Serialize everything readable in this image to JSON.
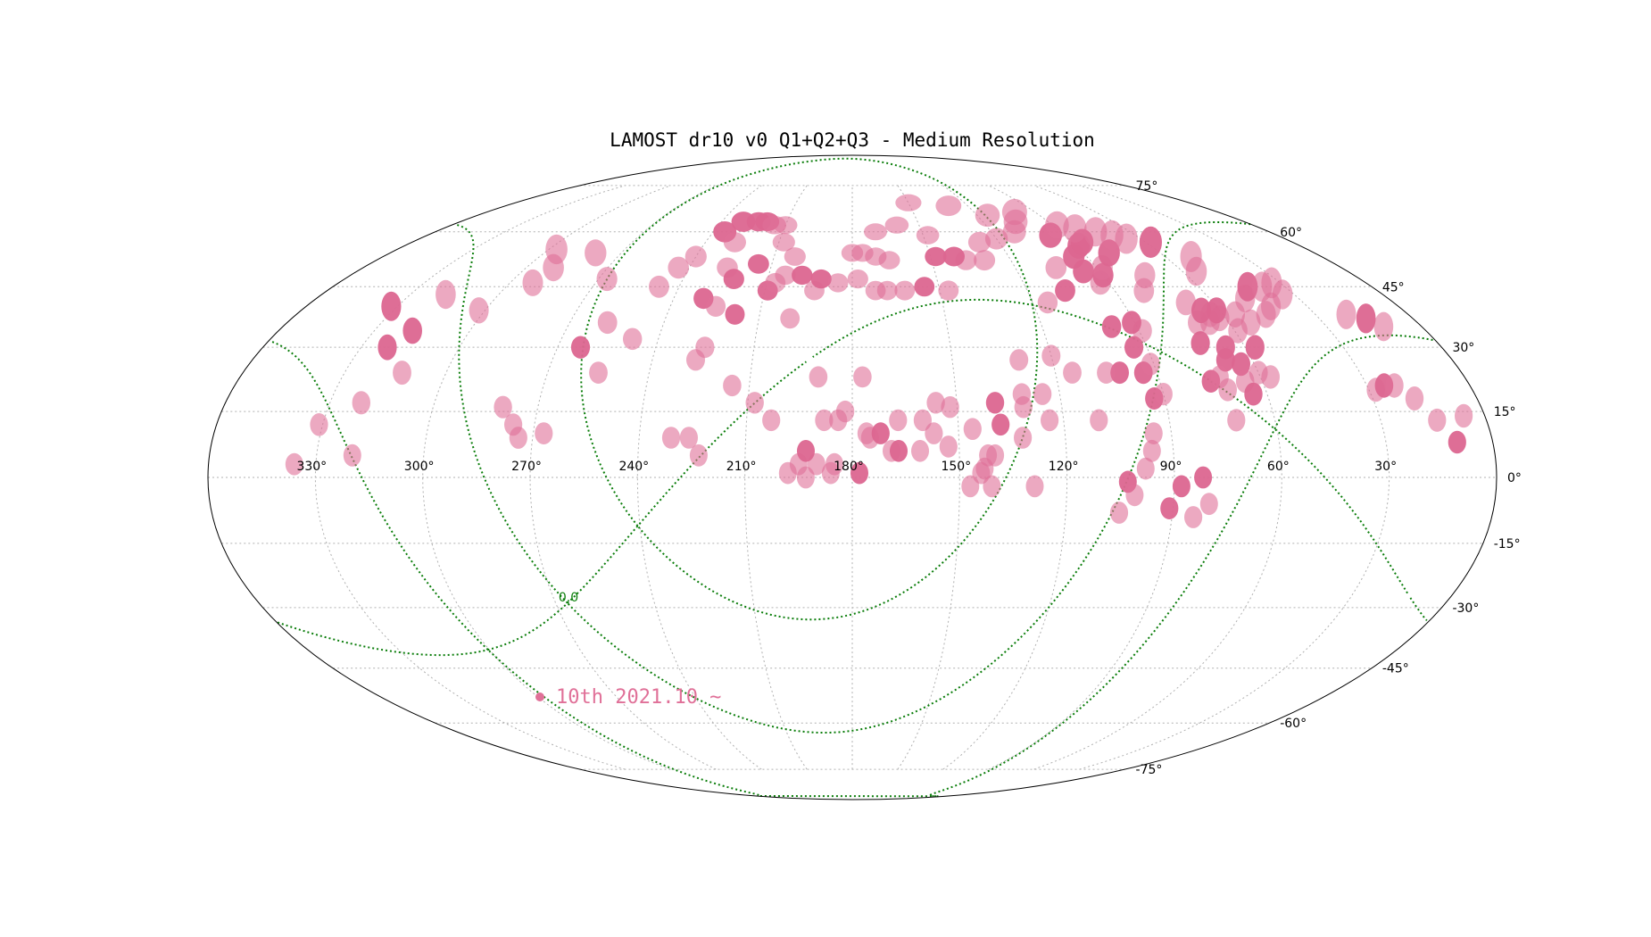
{
  "chart_data": {
    "type": "scatter",
    "projection": "mollweide",
    "title": "LAMOST dr10 v0 Q1+Q2+Q3 - Medium Resolution",
    "lon_ticks": [
      "330°",
      "300°",
      "270°",
      "240°",
      "210°",
      "180°",
      "150°",
      "120°",
      "90°",
      "60°",
      "30°"
    ],
    "lon_tick_values": [
      330,
      300,
      270,
      240,
      210,
      180,
      150,
      120,
      90,
      60,
      30
    ],
    "lat_ticks": [
      "75°",
      "60°",
      "45°",
      "30°",
      "15°",
      "0°",
      "-15°",
      "-30°",
      "-45°",
      "-60°",
      "-75°"
    ],
    "lat_tick_values": [
      75,
      60,
      45,
      30,
      15,
      0,
      -15,
      -30,
      -45,
      -60,
      -75
    ],
    "grid": true,
    "galactic_plane_label": "0.0",
    "legend": {
      "label": "10th 2021.10 ~",
      "color": "#e07098",
      "placement": "bottom-left"
    },
    "colors": {
      "field": "#e07098",
      "field_dark": "#dc6690",
      "galactic": "#0a7d0a",
      "grid": "#b0b0b0"
    },
    "fields": [
      {
        "ra": 336,
        "dec": 3,
        "dark": false
      },
      {
        "ra": 320,
        "dec": 5,
        "dark": false
      },
      {
        "ra": 331,
        "dec": 12,
        "dark": false
      },
      {
        "ra": 321,
        "dec": 17,
        "dark": false
      },
      {
        "ra": 313,
        "dec": 24,
        "dark": false
      },
      {
        "ra": 322,
        "dec": 30,
        "dark": true
      },
      {
        "ra": 318,
        "dec": 34,
        "dark": true
      },
      {
        "ra": 332,
        "dec": 40,
        "dark": true
      },
      {
        "ra": 302,
        "dec": 39,
        "dark": false
      },
      {
        "ra": 318,
        "dec": 43,
        "dark": false
      },
      {
        "ra": 292,
        "dec": 46,
        "dark": false
      },
      {
        "ra": 290,
        "dec": 50,
        "dark": false
      },
      {
        "ra": 297,
        "dec": 55,
        "dark": false
      },
      {
        "ra": 280,
        "dec": 54,
        "dark": false
      },
      {
        "ra": 267,
        "dec": 47,
        "dark": false
      },
      {
        "ra": 258,
        "dec": 36,
        "dark": false
      },
      {
        "ra": 263,
        "dec": 30,
        "dark": true
      },
      {
        "ra": 255,
        "dec": 24,
        "dark": false
      },
      {
        "ra": 248,
        "dec": 32,
        "dark": false
      },
      {
        "ra": 280,
        "dec": 16,
        "dark": false
      },
      {
        "ra": 276,
        "dec": 12,
        "dark": false
      },
      {
        "ra": 274,
        "dec": 9,
        "dark": false
      },
      {
        "ra": 267,
        "dec": 10,
        "dark": false
      },
      {
        "ra": 247,
        "dec": 45,
        "dark": false
      },
      {
        "ra": 244,
        "dec": 50,
        "dark": false
      },
      {
        "ra": 240,
        "dec": 53,
        "dark": false
      },
      {
        "ra": 235,
        "dec": 60,
        "dark": true
      },
      {
        "ra": 230,
        "dec": 63,
        "dark": true
      },
      {
        "ra": 223,
        "dec": 63,
        "dark": true
      },
      {
        "ra": 219,
        "dec": 63,
        "dark": true
      },
      {
        "ra": 215,
        "dec": 62,
        "dark": false
      },
      {
        "ra": 228,
        "dec": 57,
        "dark": false
      },
      {
        "ra": 226,
        "dec": 50,
        "dark": false
      },
      {
        "ra": 222,
        "dec": 47,
        "dark": true
      },
      {
        "ra": 215,
        "dec": 51,
        "dark": true
      },
      {
        "ra": 230,
        "dec": 42,
        "dark": true
      },
      {
        "ra": 225,
        "dec": 40,
        "dark": false
      },
      {
        "ra": 218,
        "dec": 38,
        "dark": true
      },
      {
        "ra": 225,
        "dec": 30,
        "dark": false
      },
      {
        "ra": 227,
        "dec": 27,
        "dark": false
      },
      {
        "ra": 215,
        "dec": 21,
        "dark": false
      },
      {
        "ra": 208,
        "dec": 17,
        "dark": false
      },
      {
        "ra": 203,
        "dec": 13,
        "dark": false
      },
      {
        "ra": 226,
        "dec": 9,
        "dark": false
      },
      {
        "ra": 231,
        "dec": 9,
        "dark": false
      },
      {
        "ra": 223,
        "dec": 5,
        "dark": false
      },
      {
        "ra": 209,
        "dec": 44,
        "dark": true
      },
      {
        "ra": 207,
        "dec": 46,
        "dark": false
      },
      {
        "ra": 204,
        "dec": 48,
        "dark": false
      },
      {
        "ra": 202,
        "dec": 53,
        "dark": false
      },
      {
        "ra": 208,
        "dec": 57,
        "dark": false
      },
      {
        "ra": 210,
        "dec": 62,
        "dark": false
      },
      {
        "ra": 198,
        "dec": 48,
        "dark": true
      },
      {
        "ra": 193,
        "dec": 44,
        "dark": false
      },
      {
        "ra": 191,
        "dec": 47,
        "dark": true
      },
      {
        "ra": 185,
        "dec": 46,
        "dark": false
      },
      {
        "ra": 178,
        "dec": 47,
        "dark": false
      },
      {
        "ra": 172,
        "dec": 44,
        "dark": false
      },
      {
        "ra": 168,
        "dec": 44,
        "dark": false
      },
      {
        "ra": 162,
        "dec": 44,
        "dark": false
      },
      {
        "ra": 155,
        "dec": 45,
        "dark": true
      },
      {
        "ra": 147,
        "dec": 44,
        "dark": false
      },
      {
        "ra": 200,
        "dec": 37,
        "dark": false
      },
      {
        "ra": 190,
        "dec": 23,
        "dark": false
      },
      {
        "ra": 177,
        "dec": 23,
        "dark": false
      },
      {
        "ra": 182,
        "dec": 15,
        "dark": false
      },
      {
        "ra": 184,
        "dec": 13,
        "dark": false
      },
      {
        "ra": 188,
        "dec": 13,
        "dark": false
      },
      {
        "ra": 176,
        "dec": 10,
        "dark": false
      },
      {
        "ra": 175,
        "dec": 9,
        "dark": false
      },
      {
        "ra": 172,
        "dec": 10,
        "dark": true
      },
      {
        "ra": 167,
        "dec": 13,
        "dark": false
      },
      {
        "ra": 169,
        "dec": 6,
        "dark": false
      },
      {
        "ra": 167,
        "dec": 6,
        "dark": true
      },
      {
        "ra": 160,
        "dec": 13,
        "dark": false
      },
      {
        "ra": 161,
        "dec": 6,
        "dark": false
      },
      {
        "ra": 157,
        "dec": 10,
        "dark": false
      },
      {
        "ra": 153,
        "dec": 7,
        "dark": false
      },
      {
        "ra": 156,
        "dec": 17,
        "dark": false
      },
      {
        "ra": 152,
        "dec": 16,
        "dark": false
      },
      {
        "ra": 146,
        "dec": 11,
        "dark": false
      },
      {
        "ra": 142,
        "dec": 5,
        "dark": false
      },
      {
        "ra": 143,
        "dec": 2,
        "dark": false
      },
      {
        "ra": 140,
        "dec": 5,
        "dark": false
      },
      {
        "ra": 139,
        "dec": 17,
        "dark": true
      },
      {
        "ra": 138,
        "dec": 12,
        "dark": true
      },
      {
        "ra": 131,
        "dec": 19,
        "dark": false
      },
      {
        "ra": 131,
        "dec": 16,
        "dark": false
      },
      {
        "ra": 132,
        "dec": 9,
        "dark": false
      },
      {
        "ra": 124,
        "dec": 13,
        "dark": false
      },
      {
        "ra": 125,
        "dec": 19,
        "dark": false
      },
      {
        "ra": 110,
        "dec": 13,
        "dark": false
      },
      {
        "ra": 130,
        "dec": 27,
        "dark": false
      },
      {
        "ra": 120,
        "dec": 28,
        "dark": false
      },
      {
        "ra": 115,
        "dec": 24,
        "dark": false
      },
      {
        "ra": 178,
        "dec": 1,
        "dark": true
      },
      {
        "ra": 185,
        "dec": 3,
        "dark": false
      },
      {
        "ra": 190,
        "dec": 3,
        "dark": false
      },
      {
        "ra": 195,
        "dec": 3,
        "dark": false
      },
      {
        "ra": 198,
        "dec": 1,
        "dark": false
      },
      {
        "ra": 193,
        "dec": 0,
        "dark": false
      },
      {
        "ra": 186,
        "dec": 1,
        "dark": false
      },
      {
        "ra": 193,
        "dec": 6,
        "dark": true
      },
      {
        "ra": 147,
        "dec": -2,
        "dark": false
      },
      {
        "ra": 141,
        "dec": -2,
        "dark": false
      },
      {
        "ra": 129,
        "dec": -2,
        "dark": false
      },
      {
        "ra": 144,
        "dec": 1,
        "dark": false
      },
      {
        "ra": 103,
        "dec": -1,
        "dark": true
      },
      {
        "ra": 101,
        "dec": -4,
        "dark": false
      },
      {
        "ra": 98,
        "dec": 2,
        "dark": false
      },
      {
        "ra": 96,
        "dec": 6,
        "dark": false
      },
      {
        "ra": 95,
        "dec": 10,
        "dark": false
      },
      {
        "ra": 88,
        "dec": -2,
        "dark": true
      },
      {
        "ra": 82,
        "dec": 0,
        "dark": true
      },
      {
        "ra": 80,
        "dec": -6,
        "dark": false
      },
      {
        "ra": 84,
        "dec": -9,
        "dark": false
      },
      {
        "ra": 91,
        "dec": -7,
        "dark": true
      },
      {
        "ra": 105,
        "dec": -8,
        "dark": false
      },
      {
        "ra": 71,
        "dec": 13,
        "dark": false
      },
      {
        "ra": 101,
        "dec": 24,
        "dark": true
      },
      {
        "ra": 105,
        "dec": 24,
        "dark": false
      },
      {
        "ra": 94,
        "dec": 24,
        "dark": true
      },
      {
        "ra": 93,
        "dec": 18,
        "dark": true
      },
      {
        "ra": 90,
        "dec": 19,
        "dark": false
      },
      {
        "ra": 94,
        "dec": 30,
        "dark": true
      },
      {
        "ra": 91,
        "dec": 26,
        "dark": false
      },
      {
        "ra": 89,
        "dec": 34,
        "dark": false
      },
      {
        "ra": 91,
        "dec": 36,
        "dark": true
      },
      {
        "ra": 98,
        "dec": 35,
        "dark": true
      },
      {
        "ra": 115,
        "dec": 41,
        "dark": false
      },
      {
        "ra": 107,
        "dec": 44,
        "dark": true
      },
      {
        "ra": 93,
        "dec": 46,
        "dark": false
      },
      {
        "ra": 90,
        "dec": 48,
        "dark": true
      },
      {
        "ra": 96,
        "dec": 49,
        "dark": true
      },
      {
        "ra": 105,
        "dec": 50,
        "dark": false
      },
      {
        "ra": 88,
        "dec": 50,
        "dark": false
      },
      {
        "ra": 95,
        "dec": 53,
        "dark": true
      },
      {
        "ra": 130,
        "dec": 52,
        "dark": false
      },
      {
        "ra": 137,
        "dec": 52,
        "dark": false
      },
      {
        "ra": 141,
        "dec": 53,
        "dark": true
      },
      {
        "ra": 148,
        "dec": 53,
        "dark": true
      },
      {
        "ra": 166,
        "dec": 52,
        "dark": false
      },
      {
        "ra": 171,
        "dec": 53,
        "dark": false
      },
      {
        "ra": 176,
        "dec": 54,
        "dark": false
      },
      {
        "ra": 180,
        "dec": 54,
        "dark": false
      },
      {
        "ra": 170,
        "dec": 60,
        "dark": false
      },
      {
        "ra": 160,
        "dec": 62,
        "dark": false
      },
      {
        "ra": 148,
        "dec": 59,
        "dark": false
      },
      {
        "ra": 128,
        "dec": 57,
        "dark": false
      },
      {
        "ra": 120,
        "dec": 58,
        "dark": false
      },
      {
        "ra": 110,
        "dec": 60,
        "dark": false
      },
      {
        "ra": 96,
        "dec": 59,
        "dark": true
      },
      {
        "ra": 89,
        "dec": 56,
        "dark": true
      },
      {
        "ra": 86,
        "dec": 57,
        "dark": true
      },
      {
        "ra": 80,
        "dec": 54,
        "dark": true
      },
      {
        "ra": 75,
        "dec": 48,
        "dark": false
      },
      {
        "ra": 80,
        "dec": 44,
        "dark": false
      },
      {
        "ra": 69,
        "dec": 41,
        "dark": false
      },
      {
        "ra": 70,
        "dec": 36,
        "dark": false
      },
      {
        "ra": 66,
        "dec": 30,
        "dark": true
      },
      {
        "ra": 73,
        "dec": 31,
        "dark": true
      },
      {
        "ra": 68,
        "dec": 27,
        "dark": true
      },
      {
        "ra": 64,
        "dec": 26,
        "dark": true
      },
      {
        "ra": 75,
        "dec": 22,
        "dark": true
      },
      {
        "ra": 72,
        "dec": 23,
        "dark": false
      },
      {
        "ra": 71,
        "dec": 20,
        "dark": false
      },
      {
        "ra": 65,
        "dec": 22,
        "dark": false
      },
      {
        "ra": 64,
        "dec": 19,
        "dark": true
      },
      {
        "ra": 57,
        "dec": 23,
        "dark": false
      },
      {
        "ra": 60,
        "dec": 24,
        "dark": false
      },
      {
        "ra": 57,
        "dec": 30,
        "dark": true
      },
      {
        "ra": 59,
        "dec": 34,
        "dark": false
      },
      {
        "ra": 66,
        "dec": 36,
        "dark": false
      },
      {
        "ra": 62,
        "dec": 37,
        "dark": false
      },
      {
        "ra": 64,
        "dec": 38,
        "dark": false
      },
      {
        "ra": 66,
        "dec": 39,
        "dark": true
      },
      {
        "ra": 61,
        "dec": 39,
        "dark": true
      },
      {
        "ra": 56,
        "dec": 38,
        "dark": false
      },
      {
        "ra": 53,
        "dec": 36,
        "dark": false
      },
      {
        "ra": 46,
        "dec": 38,
        "dark": false
      },
      {
        "ra": 48,
        "dec": 42,
        "dark": false
      },
      {
        "ra": 42,
        "dec": 40,
        "dark": false
      },
      {
        "ra": 43,
        "dec": 45,
        "dark": true
      },
      {
        "ra": 38,
        "dec": 45,
        "dark": false
      },
      {
        "ra": 34,
        "dec": 43,
        "dark": false
      },
      {
        "ra": 55,
        "dec": 49,
        "dark": false
      },
      {
        "ra": 50,
        "dec": 53,
        "dark": false
      },
      {
        "ra": 58,
        "dec": 57,
        "dark": true
      },
      {
        "ra": 66,
        "dec": 58,
        "dark": false
      },
      {
        "ra": 70,
        "dec": 59,
        "dark": false
      },
      {
        "ra": 75,
        "dec": 60,
        "dark": false
      },
      {
        "ra": 82,
        "dec": 61,
        "dark": false
      },
      {
        "ra": 88,
        "dec": 62,
        "dark": false
      },
      {
        "ra": 105,
        "dec": 63,
        "dark": false
      },
      {
        "ra": 115,
        "dec": 65,
        "dark": false
      },
      {
        "ra": 130,
        "dec": 68,
        "dark": false
      },
      {
        "ra": 150,
        "dec": 69,
        "dark": false
      },
      {
        "ra": 100,
        "dec": 66,
        "dark": false
      },
      {
        "ra": 28,
        "dec": 20,
        "dark": false
      },
      {
        "ra": 25,
        "dec": 21,
        "dark": true
      },
      {
        "ra": 22,
        "dec": 21,
        "dark": false
      },
      {
        "ra": 18,
        "dec": 18,
        "dark": false
      },
      {
        "ra": 14,
        "dec": 13,
        "dark": false
      },
      {
        "ra": 10,
        "dec": 8,
        "dark": true
      },
      {
        "ra": 6,
        "dec": 14,
        "dark": false
      },
      {
        "ra": 12,
        "dec": 35,
        "dark": false
      },
      {
        "ra": 15,
        "dec": 37,
        "dark": true
      },
      {
        "ra": 20,
        "dec": 38,
        "dark": false
      },
      {
        "ra": 33,
        "dec": 46,
        "dark": false
      }
    ]
  }
}
